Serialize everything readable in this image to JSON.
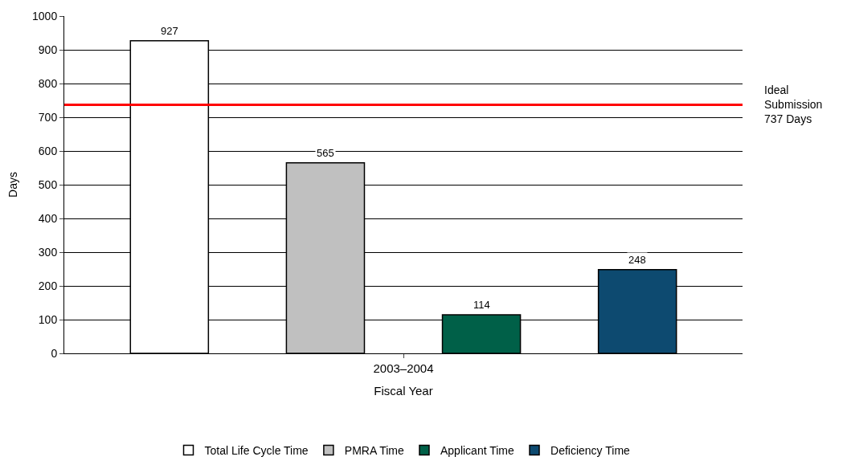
{
  "chart_data": {
    "type": "bar",
    "xlabel": "Fiscal Year",
    "ylabel": "Days",
    "categories": [
      "2003–2004"
    ],
    "series": [
      {
        "name": "Total Life Cycle Time",
        "color": "#ffffff",
        "values": [
          927
        ]
      },
      {
        "name": "PMRA Time",
        "color": "#c0c0c0",
        "values": [
          565
        ]
      },
      {
        "name": "Applicant Time",
        "color": "#006048",
        "values": [
          114
        ]
      },
      {
        "name": "Deficiency Time",
        "color": "#0d4a70",
        "values": [
          248
        ]
      }
    ],
    "ylim": [
      0,
      1000
    ],
    "yticks": [
      0,
      100,
      200,
      300,
      400,
      500,
      600,
      700,
      800,
      900,
      1000
    ],
    "ref_lines": [
      {
        "axis": "y",
        "value": 737,
        "label": "Ideal\nSubmission\n737 Days",
        "color": "#ff0000"
      }
    ],
    "data_labels": true,
    "grid": "y",
    "legend": "bottom"
  }
}
